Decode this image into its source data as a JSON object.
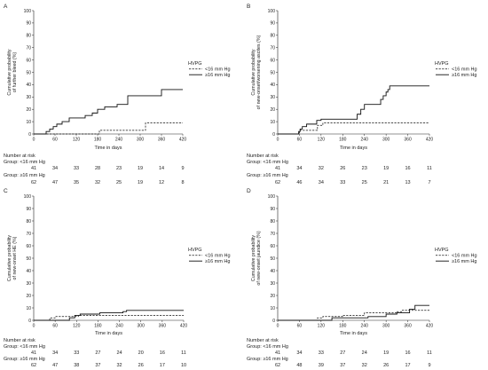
{
  "chart_data": [
    {
      "panel": "A",
      "type": "line",
      "step": true,
      "ylabel": [
        "Cumulative probability",
        "of further bleed (%)"
      ],
      "xlabel": "Time in days",
      "xlim": [
        0,
        420
      ],
      "ylim": [
        0,
        100
      ],
      "xticks": [
        0,
        60,
        120,
        180,
        240,
        300,
        360,
        420
      ],
      "yticks": [
        0,
        10,
        20,
        30,
        40,
        50,
        60,
        70,
        80,
        90,
        100
      ],
      "grid": false,
      "legend": {
        "title": "HVPG",
        "placement": "right"
      },
      "series": [
        {
          "name": "<16 mm Hg",
          "style": "dashed",
          "points": [
            [
              0,
              0
            ],
            [
              185,
              3
            ],
            [
              315,
              9
            ],
            [
              420,
              9
            ]
          ]
        },
        {
          "name": "≥16 mm Hg",
          "style": "solid",
          "points": [
            [
              0,
              0
            ],
            [
              35,
              2
            ],
            [
              45,
              4
            ],
            [
              55,
              6
            ],
            [
              65,
              8
            ],
            [
              80,
              10
            ],
            [
              100,
              13
            ],
            [
              145,
              15
            ],
            [
              165,
              17
            ],
            [
              180,
              20
            ],
            [
              200,
              22
            ],
            [
              235,
              24
            ],
            [
              265,
              31
            ],
            [
              360,
              36
            ],
            [
              420,
              36
            ]
          ]
        }
      ],
      "number_at_risk": {
        "title": "Number at risk",
        "groups": [
          {
            "label": "Group: <16 mm Hg",
            "values": [
              41,
              34,
              33,
              28,
              23,
              19,
              14,
              9
            ]
          },
          {
            "label": "Group: ≥16 mm Hg",
            "values": [
              62,
              47,
              35,
              32,
              25,
              19,
              12,
              8
            ]
          }
        ]
      }
    },
    {
      "panel": "B",
      "type": "line",
      "step": true,
      "ylabel": [
        "Cumulative probability",
        "of new-onset/worsening ascites (%)"
      ],
      "xlabel": "Time in days",
      "xlim": [
        0,
        420
      ],
      "ylim": [
        0,
        100
      ],
      "xticks": [
        0,
        60,
        120,
        180,
        240,
        300,
        360,
        420
      ],
      "yticks": [
        0,
        10,
        20,
        30,
        40,
        50,
        60,
        70,
        80,
        90,
        100
      ],
      "grid": false,
      "legend": {
        "title": "HVPG",
        "placement": "right"
      },
      "series": [
        {
          "name": "<16 mm Hg",
          "style": "dashed",
          "points": [
            [
              0,
              0
            ],
            [
              60,
              3
            ],
            [
              110,
              7
            ],
            [
              125,
              9
            ],
            [
              420,
              9
            ]
          ]
        },
        {
          "name": "≥16 mm Hg",
          "style": "solid",
          "points": [
            [
              0,
              0
            ],
            [
              58,
              2
            ],
            [
              62,
              4
            ],
            [
              68,
              6
            ],
            [
              80,
              8
            ],
            [
              108,
              11
            ],
            [
              120,
              12
            ],
            [
              220,
              16
            ],
            [
              230,
              20
            ],
            [
              240,
              24
            ],
            [
              285,
              28
            ],
            [
              292,
              31
            ],
            [
              300,
              34
            ],
            [
              305,
              36
            ],
            [
              310,
              39
            ],
            [
              420,
              39
            ]
          ]
        }
      ],
      "number_at_risk": {
        "title": "Number at risk",
        "groups": [
          {
            "label": "Group: <16 mm Hg",
            "values": [
              41,
              34,
              32,
              26,
              23,
              19,
              16,
              11
            ]
          },
          {
            "label": "Group: ≥16 mm Hg",
            "values": [
              62,
              46,
              34,
              33,
              25,
              21,
              13,
              7
            ]
          }
        ]
      }
    },
    {
      "panel": "C",
      "type": "line",
      "step": true,
      "ylabel": [
        "Cumulative probability",
        "of new-onset HE (%)"
      ],
      "xlabel": "Time in days",
      "xlim": [
        0,
        420
      ],
      "ylim": [
        0,
        100
      ],
      "xticks": [
        0,
        60,
        120,
        180,
        240,
        300,
        360,
        420
      ],
      "yticks": [
        0,
        10,
        20,
        30,
        40,
        50,
        60,
        70,
        80,
        90,
        100
      ],
      "grid": false,
      "legend": {
        "title": "HVPG",
        "placement": "right"
      },
      "series": [
        {
          "name": "<16 mm Hg",
          "style": "dashed",
          "points": [
            [
              0,
              0
            ],
            [
              45,
              2
            ],
            [
              60,
              3
            ],
            [
              125,
              4
            ],
            [
              420,
              4
            ]
          ]
        },
        {
          "name": "≥16 mm Hg",
          "style": "solid",
          "points": [
            [
              0,
              0
            ],
            [
              100,
              2
            ],
            [
              115,
              4
            ],
            [
              130,
              5
            ],
            [
              185,
              6
            ],
            [
              250,
              7
            ],
            [
              260,
              8
            ],
            [
              420,
              8
            ]
          ]
        }
      ],
      "number_at_risk": {
        "title": "Number at risk",
        "groups": [
          {
            "label": "Group: <16 mm Hg",
            "values": [
              41,
              34,
              33,
              27,
              24,
              20,
              16,
              11
            ]
          },
          {
            "label": "Group: ≥16 mm Hg",
            "values": [
              62,
              47,
              38,
              37,
              32,
              26,
              17,
              10
            ]
          }
        ]
      }
    },
    {
      "panel": "D",
      "type": "line",
      "step": true,
      "ylabel": [
        "Cumulative probability",
        "of new-onset jaundice (%)"
      ],
      "xlabel": "Time in days",
      "xlim": [
        0,
        420
      ],
      "ylim": [
        0,
        100
      ],
      "xticks": [
        0,
        60,
        120,
        180,
        240,
        300,
        360,
        420
      ],
      "yticks": [
        0,
        10,
        20,
        30,
        40,
        50,
        60,
        70,
        80,
        90,
        100
      ],
      "grid": false,
      "legend": {
        "title": "HVPG",
        "placement": "right"
      },
      "series": [
        {
          "name": "<16 mm Hg",
          "style": "dashed",
          "points": [
            [
              0,
              0
            ],
            [
              110,
              2
            ],
            [
              125,
              3
            ],
            [
              180,
              4
            ],
            [
              240,
              6
            ],
            [
              330,
              7
            ],
            [
              345,
              8
            ],
            [
              420,
              8
            ]
          ]
        },
        {
          "name": "≥16 mm Hg",
          "style": "solid",
          "points": [
            [
              0,
              0
            ],
            [
              150,
              2
            ],
            [
              250,
              3
            ],
            [
              300,
              5
            ],
            [
              330,
              6
            ],
            [
              365,
              9
            ],
            [
              380,
              12
            ],
            [
              420,
              12
            ]
          ]
        }
      ],
      "number_at_risk": {
        "title": "Number at risk",
        "groups": [
          {
            "label": "Group: <16 mm Hg",
            "values": [
              41,
              34,
              33,
              27,
              24,
              19,
              16,
              11
            ]
          },
          {
            "label": "Group: ≥16 mm Hg",
            "values": [
              62,
              48,
              39,
              37,
              32,
              26,
              17,
              9
            ]
          }
        ]
      }
    }
  ]
}
